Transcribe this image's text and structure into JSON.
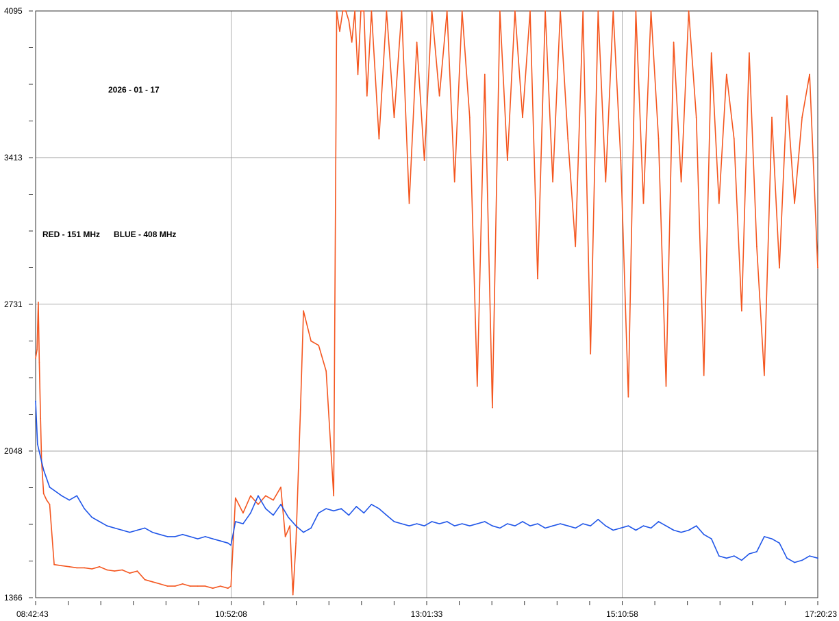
{
  "chart_data": {
    "type": "line",
    "title": "",
    "xlabel": "",
    "ylabel": "",
    "annotations": {
      "date": "2026 - 01 - 17",
      "legend_text": "RED - 151 MHz      BLUE - 408 MHz"
    },
    "legend_position": "left",
    "grid": true,
    "colors": {
      "red": "#F4561F",
      "blue": "#1F55E8",
      "grid": "#9a9a9a",
      "axis": "#333333"
    },
    "x_ticks": [
      "08:42:43",
      "10:52:08",
      "13:01:33",
      "15:10:58",
      "17:20:23"
    ],
    "y_ticks": [
      "1366",
      "2048",
      "2731",
      "3413",
      "4095"
    ],
    "ylim": [
      1366,
      4095
    ],
    "xlim": [
      "08:42:43",
      "17:20:23"
    ],
    "series": [
      {
        "name": "RED - 151 MHz",
        "color": "#F4561F",
        "x": [
          "08:42:43",
          "08:43:40",
          "08:44:30",
          "08:45:10",
          "08:46:00",
          "08:46:40",
          "08:48:00",
          "08:50:00",
          "08:52:00",
          "08:55:00",
          "09:00:00",
          "09:05:00",
          "09:10:00",
          "09:15:00",
          "09:20:00",
          "09:25:00",
          "09:30:00",
          "09:35:00",
          "09:40:00",
          "09:45:00",
          "09:50:00",
          "09:55:00",
          "10:00:00",
          "10:05:00",
          "10:10:00",
          "10:15:00",
          "10:20:00",
          "10:25:00",
          "10:30:00",
          "10:35:00",
          "10:40:00",
          "10:45:00",
          "10:50:00",
          "10:52:00",
          "10:55:00",
          "11:00:00",
          "11:05:00",
          "11:10:00",
          "11:15:00",
          "11:20:00",
          "11:25:00",
          "11:28:00",
          "11:31:00",
          "11:33:00",
          "11:35:00",
          "11:38:00",
          "11:40:00",
          "11:45:00",
          "11:50:00",
          "11:55:00",
          "12:00:00",
          "12:02:00",
          "12:04:00",
          "12:06:00",
          "12:08:00",
          "12:10:00",
          "12:12:00",
          "12:14:00",
          "12:16:00",
          "12:18:00",
          "12:20:00",
          "12:22:00",
          "12:25:00",
          "12:30:00",
          "12:35:00",
          "12:40:00",
          "12:45:00",
          "12:50:00",
          "12:55:00",
          "13:00:00",
          "13:05:00",
          "13:10:00",
          "13:15:00",
          "13:20:00",
          "13:25:00",
          "13:30:00",
          "13:35:00",
          "13:40:00",
          "13:45:00",
          "13:50:00",
          "13:55:00",
          "14:00:00",
          "14:05:00",
          "14:10:00",
          "14:15:00",
          "14:20:00",
          "14:25:00",
          "14:30:00",
          "14:35:00",
          "14:40:00",
          "14:45:00",
          "14:50:00",
          "14:55:00",
          "15:00:00",
          "15:05:00",
          "15:10:00",
          "15:15:00",
          "15:20:00",
          "15:25:00",
          "15:30:00",
          "15:35:00",
          "15:40:00",
          "15:45:00",
          "15:50:00",
          "15:55:00",
          "16:00:00",
          "16:05:00",
          "16:10:00",
          "16:15:00",
          "16:20:00",
          "16:25:00",
          "16:30:00",
          "16:35:00",
          "16:40:00",
          "16:45:00",
          "16:50:00",
          "16:55:00",
          "17:00:00",
          "17:05:00",
          "17:10:00",
          "17:15:00",
          "17:20:23"
        ],
        "values": [
          2480,
          2520,
          2740,
          2460,
          2200,
          2000,
          1850,
          1820,
          1800,
          1520,
          1515,
          1510,
          1505,
          1505,
          1500,
          1510,
          1495,
          1490,
          1495,
          1480,
          1490,
          1450,
          1440,
          1430,
          1420,
          1420,
          1430,
          1420,
          1420,
          1420,
          1410,
          1420,
          1410,
          1420,
          1830,
          1760,
          1840,
          1800,
          1840,
          1820,
          1880,
          1650,
          1700,
          1380,
          1620,
          2240,
          2700,
          2560,
          2540,
          2420,
          1840,
          4095,
          4000,
          4095,
          4095,
          4050,
          3950,
          4095,
          3800,
          4095,
          4095,
          3700,
          4095,
          3500,
          4095,
          3600,
          4095,
          3200,
          3950,
          3400,
          4095,
          3700,
          4095,
          3300,
          4095,
          3600,
          2350,
          3800,
          2250,
          4095,
          3400,
          4095,
          3600,
          4095,
          2850,
          4095,
          3300,
          4095,
          3500,
          3000,
          4095,
          2500,
          4095,
          3300,
          4095,
          3400,
          2300,
          4095,
          3200,
          4095,
          3500,
          2350,
          3950,
          3300,
          4095,
          3600,
          2400,
          3900,
          3200,
          3800,
          3500,
          2700,
          3900,
          3000,
          2400,
          3600,
          2900,
          3700,
          3200,
          3600,
          3800,
          2900
        ]
      },
      {
        "name": "BLUE - 408 MHz",
        "color": "#1F55E8",
        "x": [
          "08:42:43",
          "08:44:00",
          "08:46:00",
          "08:48:00",
          "08:52:00",
          "08:56:00",
          "09:00:00",
          "09:05:00",
          "09:10:00",
          "09:15:00",
          "09:20:00",
          "09:25:00",
          "09:30:00",
          "09:35:00",
          "09:40:00",
          "09:45:00",
          "09:50:00",
          "09:55:00",
          "10:00:00",
          "10:05:00",
          "10:10:00",
          "10:15:00",
          "10:20:00",
          "10:25:00",
          "10:30:00",
          "10:35:00",
          "10:40:00",
          "10:45:00",
          "10:50:00",
          "10:52:00",
          "10:55:00",
          "11:00:00",
          "11:05:00",
          "11:10:00",
          "11:15:00",
          "11:20:00",
          "11:25:00",
          "11:30:00",
          "11:35:00",
          "11:40:00",
          "11:45:00",
          "11:50:00",
          "11:55:00",
          "12:00:00",
          "12:05:00",
          "12:10:00",
          "12:15:00",
          "12:20:00",
          "12:25:00",
          "12:30:00",
          "12:35:00",
          "12:40:00",
          "12:45:00",
          "12:50:00",
          "12:55:00",
          "13:00:00",
          "13:05:00",
          "13:10:00",
          "13:15:00",
          "13:20:00",
          "13:25:00",
          "13:30:00",
          "13:35:00",
          "13:40:00",
          "13:45:00",
          "13:50:00",
          "13:55:00",
          "14:00:00",
          "14:05:00",
          "14:10:00",
          "14:15:00",
          "14:20:00",
          "14:25:00",
          "14:30:00",
          "14:35:00",
          "14:40:00",
          "14:45:00",
          "14:50:00",
          "14:55:00",
          "15:00:00",
          "15:05:00",
          "15:10:00",
          "15:15:00",
          "15:20:00",
          "15:25:00",
          "15:30:00",
          "15:35:00",
          "15:40:00",
          "15:45:00",
          "15:50:00",
          "15:55:00",
          "16:00:00",
          "16:05:00",
          "16:10:00",
          "16:15:00",
          "16:20:00",
          "16:25:00",
          "16:30:00",
          "16:35:00",
          "16:40:00",
          "16:45:00",
          "16:50:00",
          "16:55:00",
          "17:00:00",
          "17:05:00",
          "17:10:00",
          "17:15:00",
          "17:20:23"
        ],
        "values": [
          2280,
          2080,
          2020,
          1960,
          1880,
          1860,
          1840,
          1820,
          1840,
          1780,
          1740,
          1720,
          1700,
          1690,
          1680,
          1670,
          1680,
          1690,
          1670,
          1660,
          1650,
          1650,
          1660,
          1650,
          1640,
          1650,
          1640,
          1630,
          1620,
          1610,
          1720,
          1710,
          1760,
          1840,
          1780,
          1750,
          1800,
          1740,
          1700,
          1670,
          1690,
          1760,
          1780,
          1770,
          1780,
          1750,
          1790,
          1760,
          1800,
          1780,
          1750,
          1720,
          1710,
          1700,
          1710,
          1700,
          1720,
          1710,
          1720,
          1700,
          1710,
          1700,
          1710,
          1720,
          1700,
          1690,
          1710,
          1700,
          1720,
          1700,
          1710,
          1690,
          1700,
          1710,
          1700,
          1690,
          1710,
          1700,
          1730,
          1700,
          1680,
          1690,
          1700,
          1680,
          1700,
          1690,
          1720,
          1700,
          1680,
          1670,
          1680,
          1700,
          1660,
          1640,
          1560,
          1550,
          1560,
          1540,
          1570,
          1580,
          1650,
          1640,
          1620,
          1550,
          1530,
          1540,
          1560,
          1550
        ]
      }
    ]
  }
}
